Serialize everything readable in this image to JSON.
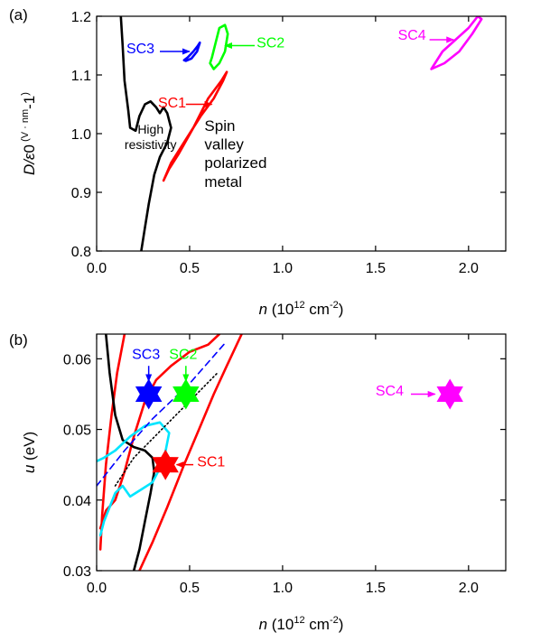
{
  "chart_data": [
    {
      "type": "line",
      "panel_label": "(a)",
      "xlabel_parts": [
        "n",
        " (10",
        "12",
        " cm",
        "-2",
        ")"
      ],
      "ylabel_parts": [
        "D/ε",
        "0",
        " (V · nm",
        "-1",
        ")"
      ],
      "xlim": [
        0.0,
        2.2
      ],
      "ylim": [
        0.8,
        1.2
      ],
      "xticks": [
        0.0,
        0.5,
        1.0,
        1.5,
        2.0
      ],
      "xtick_labels": [
        "0.0",
        "0.5",
        "1.0",
        "1.5",
        "2.0"
      ],
      "yticks": [
        0.8,
        0.9,
        1.0,
        1.1,
        1.2
      ],
      "ytick_labels": [
        "0.8",
        "0.9",
        "1.0",
        "1.1",
        "1.2"
      ],
      "series": [
        {
          "color": "#000000",
          "style": "solid",
          "points": [
            [
              0.13,
              1.2
            ],
            [
              0.14,
              1.15
            ],
            [
              0.15,
              1.09
            ],
            [
              0.17,
              1.04
            ],
            [
              0.18,
              1.01
            ],
            [
              0.21,
              1.005
            ],
            [
              0.23,
              1.03
            ],
            [
              0.26,
              1.05
            ],
            [
              0.29,
              1.055
            ],
            [
              0.32,
              1.045
            ],
            [
              0.34,
              1.035
            ],
            [
              0.36,
              1.045
            ],
            [
              0.38,
              1.035
            ],
            [
              0.4,
              1.01
            ],
            [
              0.38,
              0.985
            ],
            [
              0.34,
              0.96
            ],
            [
              0.31,
              0.93
            ],
            [
              0.28,
              0.88
            ],
            [
              0.26,
              0.84
            ],
            [
              0.24,
              0.8
            ]
          ]
        },
        {
          "color": "#ff0000",
          "style": "solid",
          "closed": true,
          "points": [
            [
              0.36,
              0.92
            ],
            [
              0.4,
              0.95
            ],
            [
              0.48,
              0.99
            ],
            [
              0.56,
              1.03
            ],
            [
              0.63,
              1.06
            ],
            [
              0.68,
              1.09
            ],
            [
              0.7,
              1.105
            ],
            [
              0.67,
              1.09
            ],
            [
              0.6,
              1.06
            ],
            [
              0.52,
              1.01
            ],
            [
              0.44,
              0.965
            ],
            [
              0.39,
              0.94
            ],
            [
              0.36,
              0.92
            ]
          ]
        },
        {
          "color": "#0000ff",
          "style": "solid",
          "closed": true,
          "points": [
            [
              0.47,
              1.125
            ],
            [
              0.49,
              1.13
            ],
            [
              0.52,
              1.14
            ],
            [
              0.545,
              1.15
            ],
            [
              0.555,
              1.155
            ],
            [
              0.54,
              1.14
            ],
            [
              0.51,
              1.128
            ],
            [
              0.48,
              1.124
            ],
            [
              0.47,
              1.125
            ]
          ]
        },
        {
          "color": "#00ff00",
          "style": "solid",
          "closed": true,
          "points": [
            [
              0.61,
              1.12
            ],
            [
              0.62,
              1.13
            ],
            [
              0.64,
              1.155
            ],
            [
              0.66,
              1.18
            ],
            [
              0.69,
              1.185
            ],
            [
              0.705,
              1.17
            ],
            [
              0.69,
              1.14
            ],
            [
              0.66,
              1.12
            ],
            [
              0.63,
              1.11
            ],
            [
              0.61,
              1.12
            ]
          ]
        },
        {
          "color": "#ff00ff",
          "style": "solid",
          "closed": true,
          "points": [
            [
              1.8,
              1.11
            ],
            [
              1.86,
              1.14
            ],
            [
              1.93,
              1.16
            ],
            [
              2.0,
              1.18
            ],
            [
              2.05,
              1.2
            ],
            [
              2.07,
              1.195
            ],
            [
              2.02,
              1.17
            ],
            [
              1.95,
              1.14
            ],
            [
              1.87,
              1.12
            ],
            [
              1.8,
              1.11
            ]
          ]
        }
      ],
      "annotations": [
        {
          "lines": [
            "SC3"
          ],
          "color": "#0000ff",
          "x": 0.16,
          "y": 1.137,
          "anchor": "start",
          "arrow": [
            [
              0.34,
              1.14
            ],
            [
              0.5,
              1.14
            ]
          ]
        },
        {
          "lines": [
            "SC2"
          ],
          "color": "#00ff00",
          "x": 0.86,
          "y": 1.147,
          "anchor": "start",
          "arrow": [
            [
              0.85,
              1.15
            ],
            [
              0.69,
              1.15
            ]
          ]
        },
        {
          "lines": [
            "SC4"
          ],
          "color": "#ff00ff",
          "x": 1.62,
          "y": 1.16,
          "anchor": "start",
          "arrow": [
            [
              1.79,
              1.16
            ],
            [
              1.92,
              1.16
            ]
          ]
        },
        {
          "lines": [
            "SC1"
          ],
          "color": "#ff0000",
          "x": 0.33,
          "y": 1.045,
          "anchor": "start",
          "arrow": [
            [
              0.48,
              1.05
            ],
            [
              0.62,
              1.05
            ]
          ]
        },
        {
          "lines": [
            "High",
            "resistivity"
          ],
          "color": "#000000",
          "x": 0.29,
          "y": 1.0,
          "anchor": "middle",
          "size": 14
        },
        {
          "lines": [
            "Spin",
            "valley",
            "polarized",
            "metal"
          ],
          "color": "#000000",
          "x": 0.58,
          "y": 1.005,
          "anchor": "start",
          "size": 17
        }
      ]
    },
    {
      "type": "line",
      "panel_label": "(b)",
      "xlabel_parts": [
        "n",
        " (10",
        "12",
        " cm",
        "-2",
        ")"
      ],
      "ylabel_parts": [
        "u",
        " (eV)"
      ],
      "xlim": [
        0.0,
        2.2
      ],
      "ylim": [
        0.03,
        0.0635
      ],
      "xticks": [
        0.0,
        0.5,
        1.0,
        1.5,
        2.0
      ],
      "xtick_labels": [
        "0.0",
        "0.5",
        "1.0",
        "1.5",
        "2.0"
      ],
      "yticks": [
        0.03,
        0.04,
        0.05,
        0.06
      ],
      "ytick_labels": [
        "0.03",
        "0.04",
        "0.05",
        "0.06"
      ],
      "series": [
        {
          "color": "#ff0000",
          "style": "solid",
          "points": [
            [
              0.02,
              0.033
            ],
            [
              0.03,
              0.038
            ],
            [
              0.05,
              0.045
            ],
            [
              0.08,
              0.052
            ],
            [
              0.11,
              0.058
            ],
            [
              0.15,
              0.0635
            ]
          ]
        },
        {
          "color": "#ff0000",
          "style": "solid",
          "points": [
            [
              0.02,
              0.036
            ],
            [
              0.05,
              0.0385
            ],
            [
              0.1,
              0.04
            ],
            [
              0.15,
              0.044
            ],
            [
              0.2,
              0.049
            ],
            [
              0.26,
              0.054
            ],
            [
              0.32,
              0.057
            ],
            [
              0.4,
              0.059
            ],
            [
              0.5,
              0.061
            ],
            [
              0.6,
              0.062
            ],
            [
              0.66,
              0.0635
            ]
          ]
        },
        {
          "color": "#ff0000",
          "style": "solid",
          "points": [
            [
              0.23,
              0.03
            ],
            [
              0.3,
              0.034
            ],
            [
              0.38,
              0.039
            ],
            [
              0.47,
              0.045
            ],
            [
              0.55,
              0.05
            ],
            [
              0.63,
              0.055
            ],
            [
              0.7,
              0.059
            ],
            [
              0.78,
              0.0635
            ]
          ]
        },
        {
          "color": "#000000",
          "style": "solid",
          "points": [
            [
              0.05,
              0.0635
            ],
            [
              0.07,
              0.058
            ],
            [
              0.1,
              0.052
            ],
            [
              0.14,
              0.0485
            ],
            [
              0.2,
              0.0475
            ],
            [
              0.26,
              0.047
            ],
            [
              0.3,
              0.046
            ],
            [
              0.31,
              0.044
            ],
            [
              0.29,
              0.041
            ],
            [
              0.26,
              0.037
            ],
            [
              0.23,
              0.033
            ],
            [
              0.2,
              0.03
            ]
          ]
        },
        {
          "color": "#00e5ff",
          "style": "solid",
          "points": [
            [
              0.0,
              0.0455
            ],
            [
              0.04,
              0.046
            ],
            [
              0.1,
              0.047
            ],
            [
              0.18,
              0.049
            ],
            [
              0.26,
              0.0505
            ],
            [
              0.34,
              0.051
            ],
            [
              0.39,
              0.0495
            ],
            [
              0.36,
              0.0455
            ],
            [
              0.3,
              0.0425
            ],
            [
              0.24,
              0.0415
            ],
            [
              0.18,
              0.0405
            ],
            [
              0.14,
              0.042
            ],
            [
              0.1,
              0.041
            ],
            [
              0.07,
              0.039
            ],
            [
              0.04,
              0.037
            ],
            [
              0.02,
              0.035
            ]
          ]
        },
        {
          "color": "#0000ff",
          "style": "dashed",
          "points": [
            [
              0.0,
              0.042
            ],
            [
              0.15,
              0.047
            ],
            [
              0.3,
              0.0515
            ],
            [
              0.5,
              0.0565
            ],
            [
              0.7,
              0.0625
            ]
          ]
        },
        {
          "color": "#000000",
          "style": "dotted",
          "points": [
            [
              0.1,
              0.042
            ],
            [
              0.2,
              0.046
            ],
            [
              0.35,
              0.05
            ],
            [
              0.5,
              0.054
            ],
            [
              0.65,
              0.058
            ]
          ]
        }
      ],
      "stars": [
        {
          "x": 0.28,
          "y": 0.055,
          "color": "#0000ff",
          "r": 17
        },
        {
          "x": 0.48,
          "y": 0.055,
          "color": "#00ff00",
          "r": 17
        },
        {
          "x": 0.37,
          "y": 0.045,
          "color": "#ff0000",
          "r": 17
        },
        {
          "x": 1.9,
          "y": 0.055,
          "color": "#ff00ff",
          "r": 17
        }
      ],
      "annotations": [
        {
          "lines": [
            "SC3"
          ],
          "color": "#0000ff",
          "x": 0.19,
          "y": 0.06,
          "anchor": "start",
          "arrow": [
            [
              0.28,
              0.059
            ],
            [
              0.28,
              0.0568
            ]
          ]
        },
        {
          "lines": [
            "SC2"
          ],
          "color": "#00ff00",
          "x": 0.39,
          "y": 0.06,
          "anchor": "start",
          "arrow": [
            [
              0.48,
              0.059
            ],
            [
              0.48,
              0.0568
            ]
          ]
        },
        {
          "lines": [
            "SC1"
          ],
          "color": "#ff0000",
          "x": 0.54,
          "y": 0.0448,
          "anchor": "start",
          "arrow": [
            [
              0.52,
              0.045
            ],
            [
              0.43,
              0.045
            ]
          ]
        },
        {
          "lines": [
            "SC4"
          ],
          "color": "#ff00ff",
          "x": 1.5,
          "y": 0.0548,
          "anchor": "start",
          "arrow": [
            [
              1.69,
              0.055
            ],
            [
              1.82,
              0.055
            ]
          ]
        }
      ]
    }
  ]
}
